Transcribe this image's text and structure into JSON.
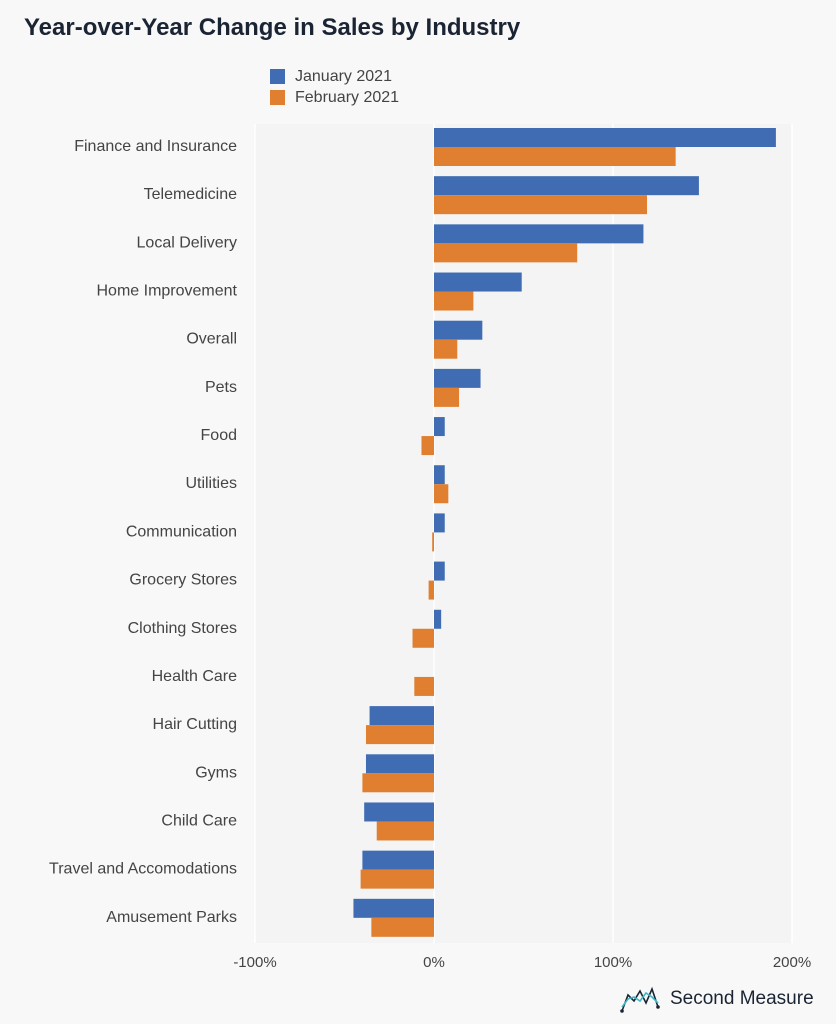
{
  "header": {
    "title": "Year-over-Year Change in Sales by Industry"
  },
  "brand": {
    "name": "Second Measure",
    "logo_icon": "second-measure-logo-icon"
  },
  "colors": {
    "series1": "#3f6cb3",
    "series2": "#e07f30",
    "background": "#f8f8f8",
    "gridline": "#ffffff",
    "text": "#444444",
    "title": "#1b2433"
  },
  "chart_data": {
    "type": "bar",
    "orientation": "horizontal",
    "title": "Year-over-Year Change in Sales by Industry",
    "xlabel": "",
    "ylabel": "",
    "xlim": [
      -100,
      200
    ],
    "x_ticks": [
      -100,
      0,
      100,
      200
    ],
    "x_tick_labels": [
      "-100%",
      "0%",
      "100%",
      "200%"
    ],
    "grid": true,
    "legend_position": "top",
    "categories": [
      "Finance and Insurance",
      "Telemedicine",
      "Local Delivery",
      "Home Improvement",
      "Overall",
      "Pets",
      "Food",
      "Utilities",
      "Communication",
      "Grocery Stores",
      "Clothing Stores",
      "Health Care",
      "Hair Cutting",
      "Gyms",
      "Child Care",
      "Travel and Accomodations",
      "Amusement Parks"
    ],
    "series": [
      {
        "name": "January 2021",
        "values": [
          191,
          148,
          117,
          49,
          27,
          26,
          6,
          6,
          6,
          6,
          4,
          0,
          -36,
          -38,
          -39,
          -40,
          -45
        ]
      },
      {
        "name": "February 2021",
        "values": [
          135,
          119,
          80,
          22,
          13,
          14,
          -7,
          8,
          -1,
          -3,
          -12,
          -11,
          -38,
          -40,
          -32,
          -41,
          -35
        ]
      }
    ]
  }
}
